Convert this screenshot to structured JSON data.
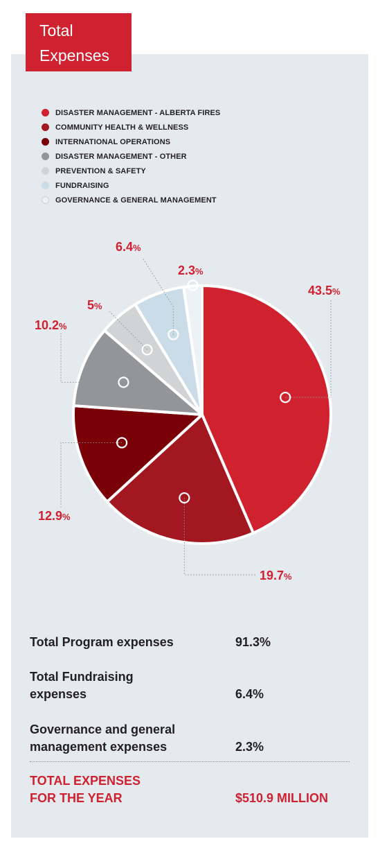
{
  "header": {
    "title_line1": "Total",
    "title_line2": "Expenses"
  },
  "colors": {
    "accent": "#cf2130",
    "panel": "#e4eaee"
  },
  "legend": [
    {
      "label": "DISASTER MANAGEMENT - ALBERTA FIRES",
      "color": "#d0222e"
    },
    {
      "label": "COMMUNITY HEALTH & WELLNESS",
      "color": "#a31820"
    },
    {
      "label": "INTERNATIONAL OPERATIONS",
      "color": "#7a0008"
    },
    {
      "label": "DISASTER MANAGEMENT - OTHER",
      "color": "#939598"
    },
    {
      "label": "PREVENTION & SAFETY",
      "color": "#d1d3d4"
    },
    {
      "label": "FUNDRAISING",
      "color": "#c9dce8"
    },
    {
      "label": "GOVERNANCE & GENERAL MANAGEMENT",
      "color": "#edf2f5"
    }
  ],
  "chart_data": {
    "type": "pie",
    "categories": [
      "DISASTER MANAGEMENT - ALBERTA FIRES",
      "COMMUNITY HEALTH & WELLNESS",
      "INTERNATIONAL OPERATIONS",
      "DISASTER MANAGEMENT - OTHER",
      "PREVENTION & SAFETY",
      "FUNDRAISING",
      "GOVERNANCE & GENERAL MANAGEMENT"
    ],
    "values": [
      43.5,
      19.7,
      12.9,
      10.2,
      5,
      6.4,
      2.3
    ],
    "labels": [
      "43.5",
      "19.7",
      "12.9",
      "10.2",
      "5",
      "6.4",
      "2.3"
    ],
    "unit": "%",
    "colors": [
      "#d0222e",
      "#a31820",
      "#7a0008",
      "#939598",
      "#d1d3d4",
      "#c9dce8",
      "#edf2f5"
    ],
    "legend_position": "top-left",
    "title": ""
  },
  "summary": {
    "program": {
      "label": "Total Program expenses",
      "value": "91.3%"
    },
    "fundraising": {
      "label_line1": "Total Fundraising",
      "label_line2": "expenses",
      "value": "6.4%"
    },
    "governance": {
      "label_line1": "Governance and general",
      "label_line2": "management expenses",
      "value": "2.3%"
    },
    "total": {
      "label_line1": "TOTAL EXPENSES",
      "label_line2": "FOR THE YEAR",
      "value": "$510.9 MILLION"
    }
  }
}
